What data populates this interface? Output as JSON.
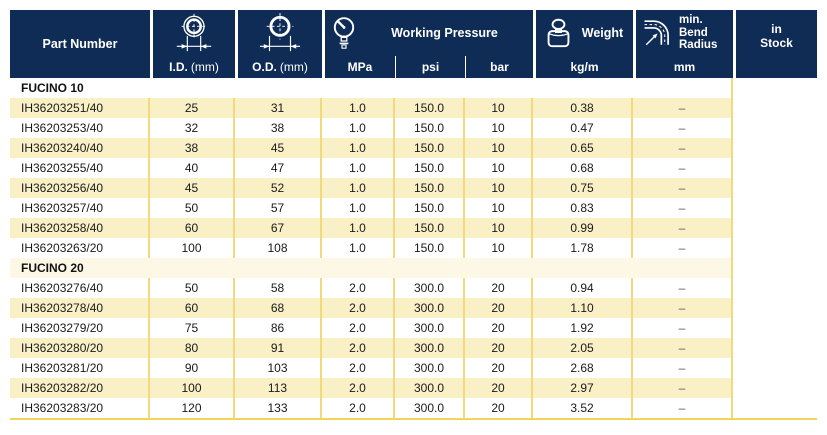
{
  "table": {
    "header": {
      "part_number": "Part Number",
      "id_label": "I.D.",
      "id_unit": "(mm)",
      "od_label": "O.D.",
      "od_unit": "(mm)",
      "working_pressure": "Working Pressure",
      "unit_mpa": "MPa",
      "unit_psi": "psi",
      "unit_bar": "bar",
      "weight": "Weight",
      "weight_unit": "kg/m",
      "bend_line1": "min.",
      "bend_line2": "Bend",
      "bend_line3": "Radius",
      "bend_unit": "mm",
      "stock_line1": "in",
      "stock_line2": "Stock"
    },
    "icons": {
      "id_icon": "inner-diameter-icon",
      "od_icon": "outer-diameter-icon",
      "pressure_icon": "pressure-gauge-icon",
      "weight_icon": "weight-icon",
      "bend_icon": "bend-radius-icon"
    },
    "columns": [
      "Part Number",
      "I.D. (mm)",
      "O.D. (mm)",
      "MPa",
      "psi",
      "bar",
      "kg/m",
      "mm",
      "in Stock"
    ],
    "sections": [
      {
        "name": "FUCINO 10",
        "rows": [
          [
            "IH36203251/40",
            "25",
            "31",
            "1.0",
            "150.0",
            "10",
            "0.38",
            "–",
            ""
          ],
          [
            "IH36203253/40",
            "32",
            "38",
            "1.0",
            "150.0",
            "10",
            "0.47",
            "–",
            ""
          ],
          [
            "IH36203240/40",
            "38",
            "45",
            "1.0",
            "150.0",
            "10",
            "0.65",
            "–",
            ""
          ],
          [
            "IH36203255/40",
            "40",
            "47",
            "1.0",
            "150.0",
            "10",
            "0.68",
            "–",
            ""
          ],
          [
            "IH36203256/40",
            "45",
            "52",
            "1.0",
            "150.0",
            "10",
            "0.75",
            "–",
            ""
          ],
          [
            "IH36203257/40",
            "50",
            "57",
            "1.0",
            "150.0",
            "10",
            "0.83",
            "–",
            ""
          ],
          [
            "IH36203258/40",
            "60",
            "67",
            "1.0",
            "150.0",
            "10",
            "0.99",
            "–",
            ""
          ],
          [
            "IH36203263/20",
            "100",
            "108",
            "1.0",
            "150.0",
            "10",
            "1.78",
            "–",
            ""
          ]
        ]
      },
      {
        "name": "FUCINO 20",
        "rows": [
          [
            "IH36203276/40",
            "50",
            "58",
            "2.0",
            "300.0",
            "20",
            "0.94",
            "–",
            ""
          ],
          [
            "IH36203278/40",
            "60",
            "68",
            "2.0",
            "300.0",
            "20",
            "1.10",
            "–",
            ""
          ],
          [
            "IH36203279/20",
            "75",
            "86",
            "2.0",
            "300.0",
            "20",
            "1.92",
            "–",
            ""
          ],
          [
            "IH36203280/20",
            "80",
            "91",
            "2.0",
            "300.0",
            "20",
            "2.05",
            "–",
            ""
          ],
          [
            "IH36203281/20",
            "90",
            "103",
            "2.0",
            "300.0",
            "20",
            "2.68",
            "–",
            ""
          ],
          [
            "IH36203282/20",
            "100",
            "113",
            "2.0",
            "300.0",
            "20",
            "2.97",
            "–",
            ""
          ],
          [
            "IH36203283/20",
            "120",
            "133",
            "2.0",
            "300.0",
            "20",
            "3.52",
            "–",
            ""
          ]
        ]
      }
    ]
  },
  "colors": {
    "header_bg": "#0f2c57",
    "header_text": "#ffffff",
    "row_stripe": "#faf0c6",
    "section_stripe": "#fdf8e6",
    "divider_gold": "#f3d97e",
    "table_bottom_border": "#f2d35b",
    "body_text": "#1a1a1a",
    "dash": "#58595b"
  }
}
